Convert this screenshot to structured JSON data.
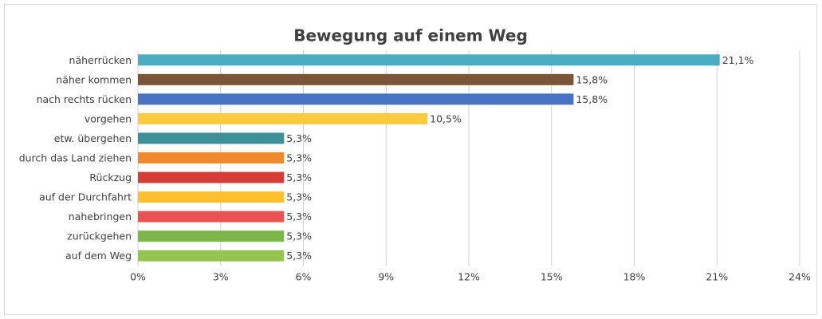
{
  "chart_data": {
    "type": "bar",
    "orientation": "horizontal",
    "title": "Bewegung auf einem Weg",
    "categories": [
      "näherrücken",
      "näher kommen",
      "nach rechts rücken",
      "vorgehen",
      "etw. übergehen",
      "durch das Land ziehen",
      "Rückzug",
      "auf der Durchfahrt",
      "nahebringen",
      "zurückgehen",
      "auf dem Weg"
    ],
    "values": [
      21.1,
      15.8,
      15.8,
      10.5,
      5.3,
      5.3,
      5.3,
      5.3,
      5.3,
      5.3,
      5.3
    ],
    "value_labels": [
      "21,1%",
      "15,8%",
      "15,8%",
      "10,5%",
      "5,3%",
      "5,3%",
      "5,3%",
      "5,3%",
      "5,3%",
      "5,3%",
      "5,3%"
    ],
    "colors": [
      "#4badc1",
      "#7b5535",
      "#4673c4",
      "#fdc93f",
      "#3c9099",
      "#f08a2c",
      "#d63d36",
      "#fdbf2b",
      "#ea534f",
      "#7bb749",
      "#95c550"
    ],
    "xlim": [
      0,
      24
    ],
    "xticks": [
      {
        "value": 0,
        "label": "0%"
      },
      {
        "value": 3,
        "label": "3%"
      },
      {
        "value": 6,
        "label": "6%"
      },
      {
        "value": 9,
        "label": "9%"
      },
      {
        "value": 12,
        "label": "12%"
      },
      {
        "value": 15,
        "label": "15%"
      },
      {
        "value": 18,
        "label": "18%"
      },
      {
        "value": 21,
        "label": "21%"
      },
      {
        "value": 24,
        "label": "24%"
      }
    ],
    "grid": true
  }
}
